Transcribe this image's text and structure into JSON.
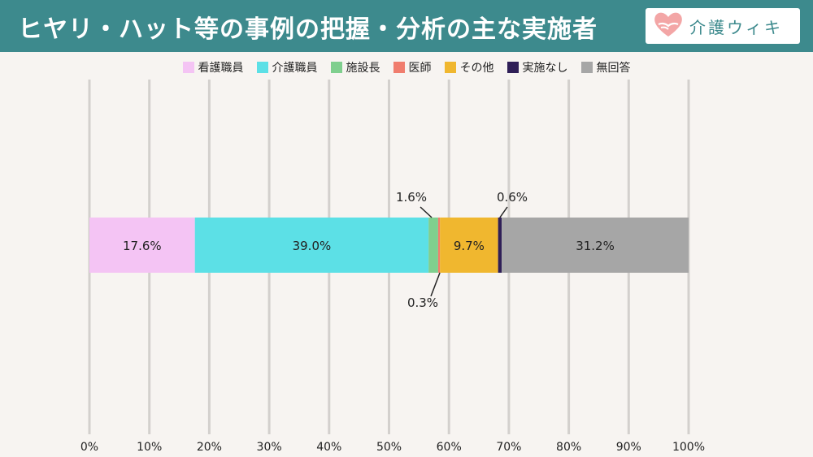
{
  "header": {
    "title": "ヒヤリ・ハット等の事例の把握・分析の主な実施者",
    "brand": "介護ウィキ",
    "bg_color": "#3d8a8d"
  },
  "chart_data": {
    "type": "bar",
    "orientation": "horizontal",
    "stacked": true,
    "percent": true,
    "categories": [
      ""
    ],
    "series": [
      {
        "name": "看護職員",
        "values": [
          17.6
        ],
        "label": "17.6%",
        "color": "#f4c4f4"
      },
      {
        "name": "介護職員",
        "values": [
          39.0
        ],
        "label": "39.0%",
        "color": "#5ce0e6"
      },
      {
        "name": "施設長",
        "values": [
          1.6
        ],
        "label": "1.6%",
        "color": "#7fcf8e"
      },
      {
        "name": "医師",
        "values": [
          0.3
        ],
        "label": "0.3%",
        "color": "#f07d6e"
      },
      {
        "name": "その他",
        "values": [
          9.7
        ],
        "label": "9.7%",
        "color": "#f0b72f"
      },
      {
        "name": "実施なし",
        "values": [
          0.6
        ],
        "label": "0.6%",
        "color": "#2f1f57"
      },
      {
        "name": "無回答",
        "values": [
          31.2
        ],
        "label": "31.2%",
        "color": "#a6a6a6"
      }
    ],
    "xlim": [
      0,
      100
    ],
    "xticks": [
      "0%",
      "10%",
      "20%",
      "30%",
      "40%",
      "50%",
      "60%",
      "70%",
      "80%",
      "90%",
      "100%"
    ],
    "grid": true,
    "legend": "top"
  }
}
